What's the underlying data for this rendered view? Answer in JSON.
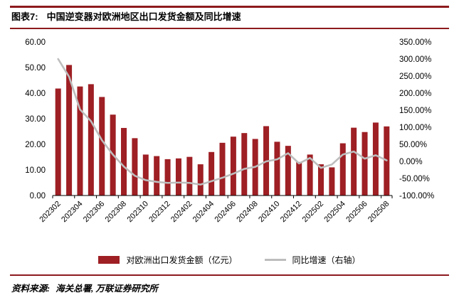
{
  "header": {
    "tag": "图表7:",
    "title": "中国逆变器对欧洲地区出口发货金额及同比增速"
  },
  "colors": {
    "bar": "#9e1f24",
    "line": "#bdbdbd",
    "accent": "#8c1a1e",
    "axis": "#000000"
  },
  "chart_data": {
    "type": "combo",
    "title": "中国逆变器对欧洲地区出口发货金额及同比增速",
    "categories": [
      "202302",
      "202303",
      "202304",
      "202305",
      "202306",
      "202307",
      "202308",
      "202309",
      "202310",
      "202311",
      "202312",
      "202401",
      "202402",
      "202403",
      "202404",
      "202405",
      "202406",
      "202407",
      "202408",
      "202409",
      "202410",
      "202411",
      "202412",
      "202501",
      "202502",
      "202503",
      "202504",
      "202505",
      "202506",
      "202507",
      "202508"
    ],
    "x_label_every": 2,
    "grid": false,
    "legend_position": "bottom",
    "series": [
      {
        "name": "对欧洲出口发货金额（亿元）",
        "type": "bar",
        "axis": "left",
        "values": [
          41.8,
          51.0,
          42.6,
          43.5,
          38.5,
          31.6,
          26.4,
          22.4,
          16.0,
          15.4,
          14.2,
          14.5,
          15.1,
          12.2,
          17.0,
          20.6,
          23.0,
          24.4,
          22.1,
          27.1,
          21.0,
          19.4,
          13.1,
          16.0,
          12.2,
          11.0,
          20.4,
          26.5,
          24.8,
          28.5,
          27.0
        ]
      },
      {
        "name": "同比增速（右轴）",
        "type": "line",
        "axis": "right",
        "values": [
          300,
          248,
          152,
          118,
          62,
          20,
          -15,
          -42,
          -55,
          -60,
          -63,
          -62,
          -63,
          -68,
          -58,
          -48,
          -36,
          -22,
          -16,
          0,
          6,
          24,
          -6,
          10,
          -19,
          -9,
          20,
          29,
          8,
          18,
          3
        ]
      }
    ],
    "left_axis": {
      "min": 0,
      "max": 60,
      "step": 10,
      "ticks": [
        "0.00",
        "10.00",
        "20.00",
        "30.00",
        "40.00",
        "50.00",
        "60.00"
      ]
    },
    "right_axis": {
      "min": -100,
      "max": 350,
      "step": 50,
      "ticks": [
        "-100.00%",
        "-50.00%",
        "0.00%",
        "50.00%",
        "100.00%",
        "150.00%",
        "200.00%",
        "250.00%",
        "300.00%",
        "350.00%"
      ]
    }
  },
  "legend": {
    "bar_label": "对欧洲出口发货金额（亿元）",
    "line_label": "同比增速（右轴）"
  },
  "footer": {
    "label": "资料来源:",
    "text": "海关总署, 万联证券研究所"
  }
}
